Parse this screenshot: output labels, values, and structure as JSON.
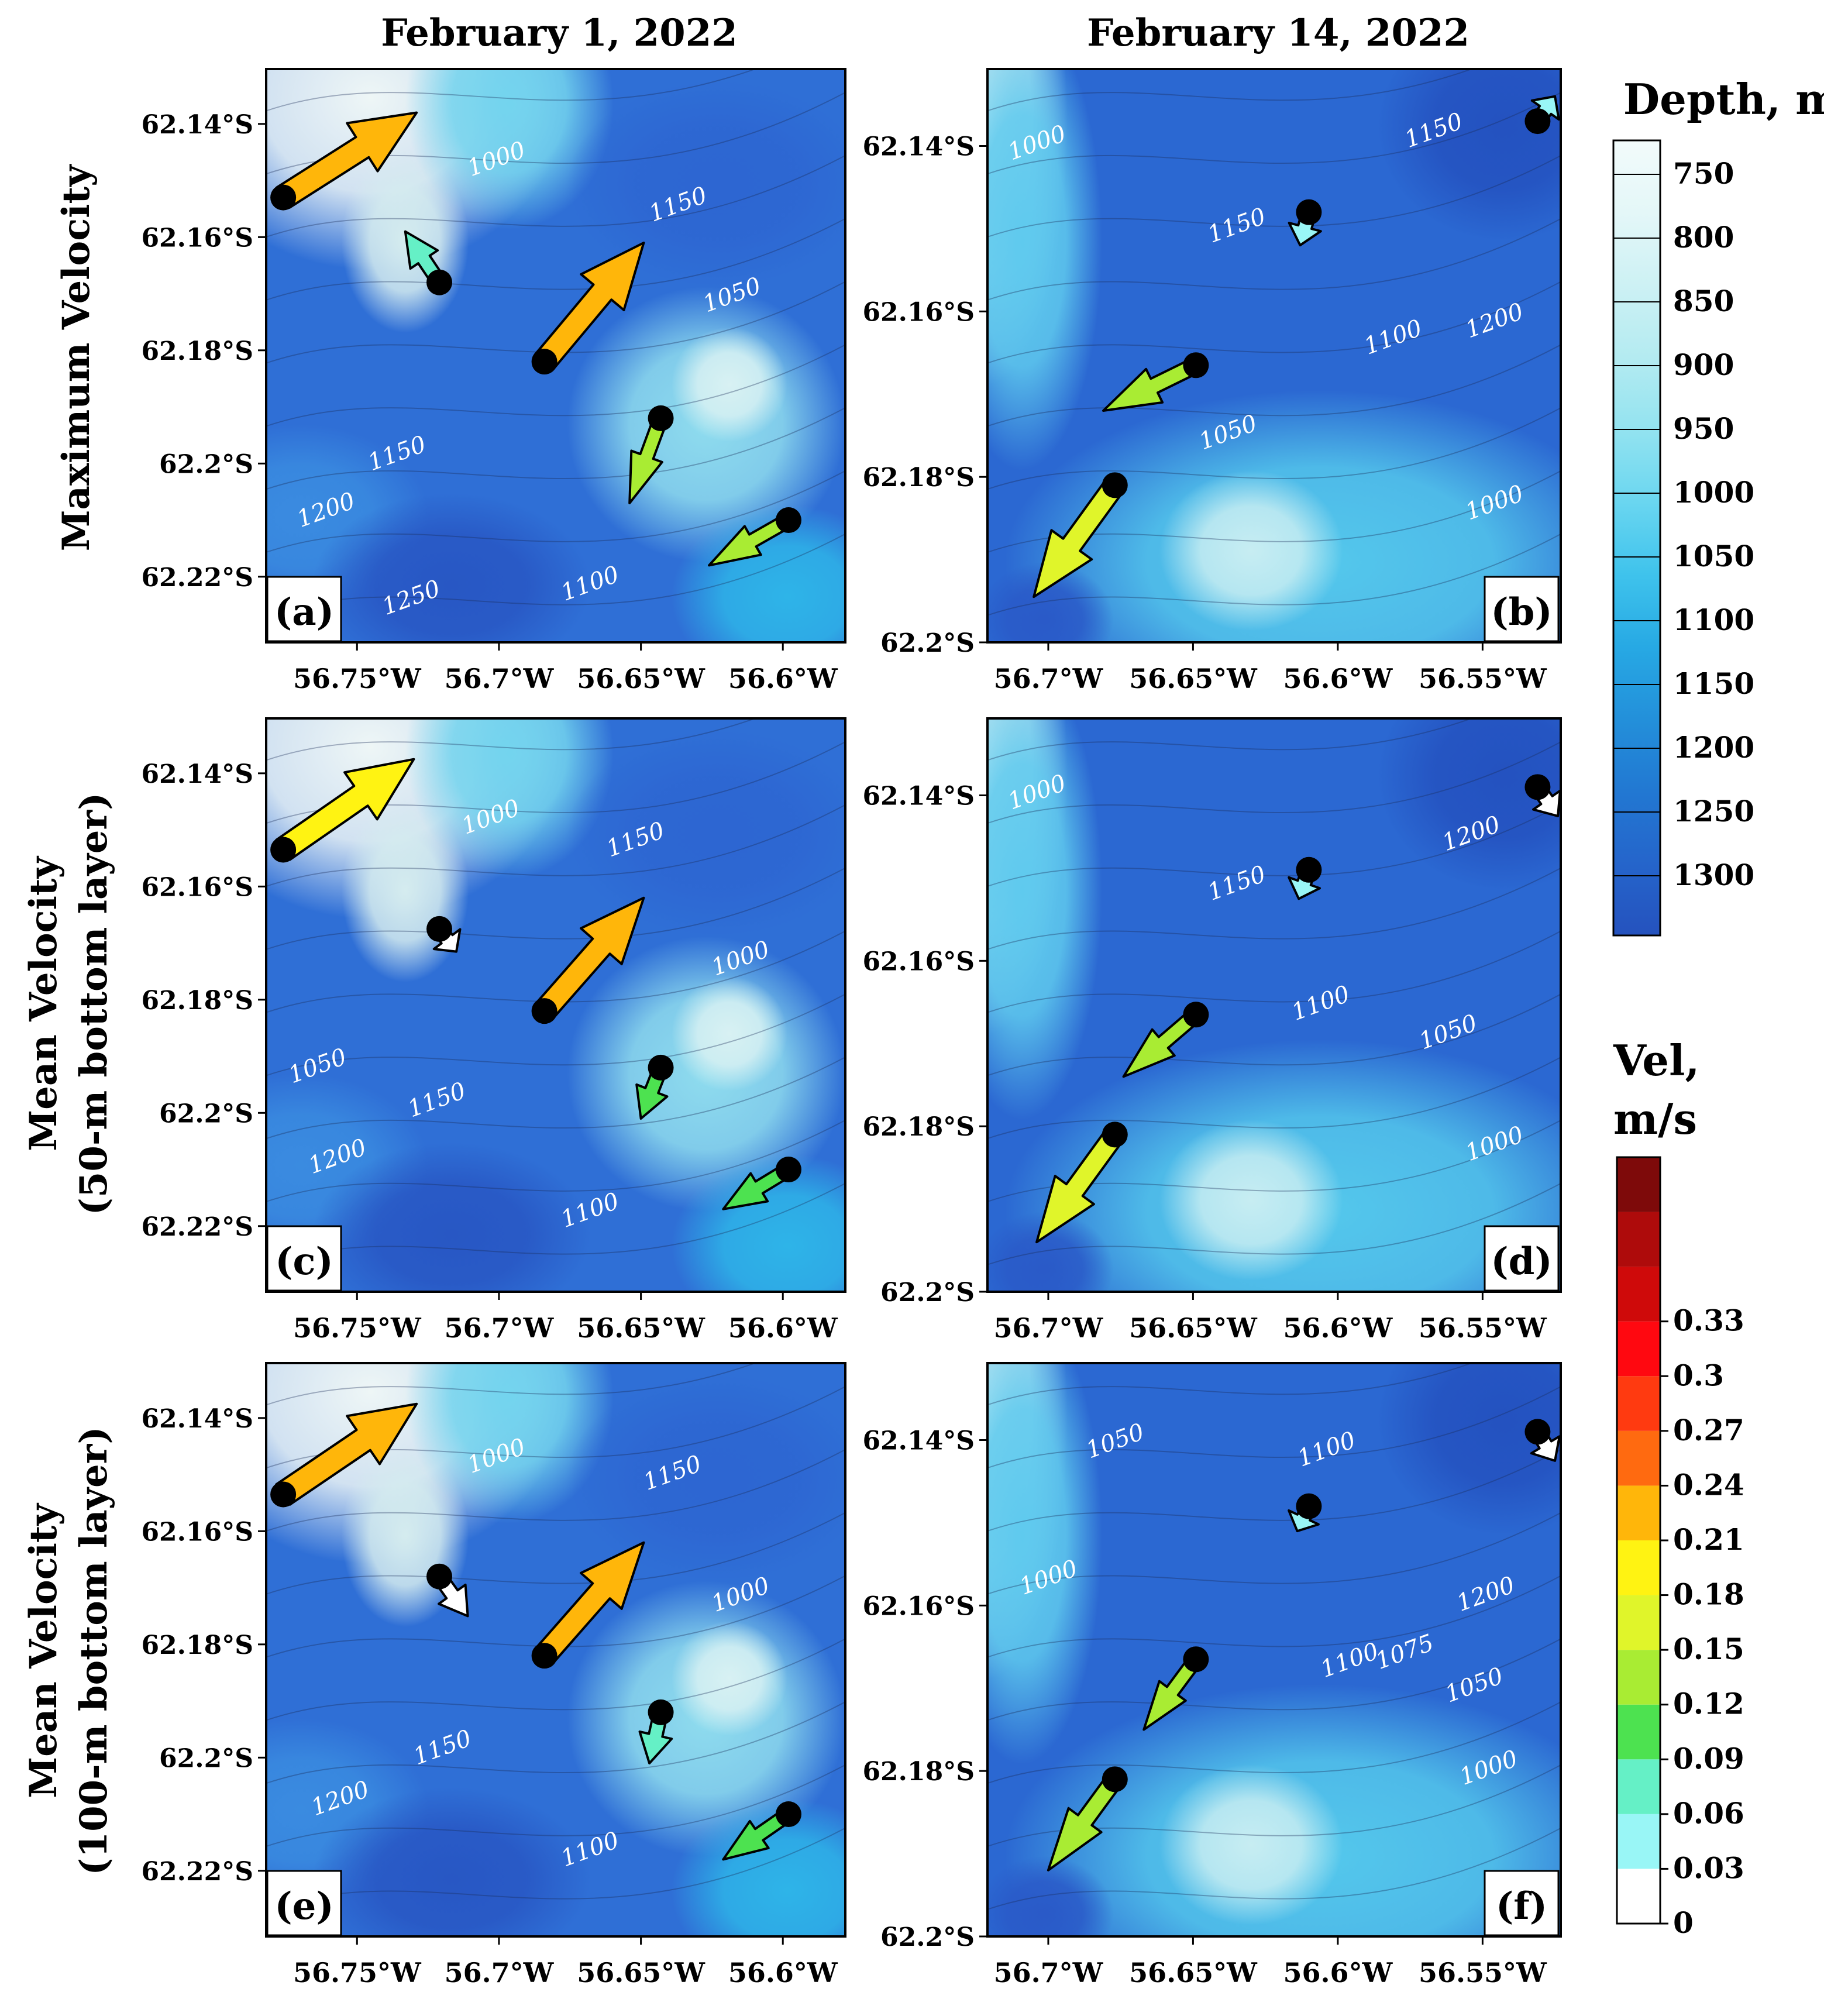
{
  "columns": [
    "February 1, 2022",
    "February 14, 2022"
  ],
  "rows": [
    {
      "label": "Maximum Velocity",
      "sublabel": ""
    },
    {
      "label": "Mean Velocity",
      "sublabel": "(50-m bottom layer)"
    },
    {
      "label": "Mean Velocity",
      "sublabel": "(100-m bottom layer)"
    }
  ],
  "axes": {
    "feb1": {
      "xticks": [
        {
          "v": -56.75,
          "t": "56.75°W"
        },
        {
          "v": -56.7,
          "t": "56.7°W"
        },
        {
          "v": -56.65,
          "t": "56.65°W"
        },
        {
          "v": -56.6,
          "t": "56.6°W"
        }
      ],
      "xlim": [
        -56.782,
        -56.578
      ],
      "yticks": [
        {
          "v": -62.14,
          "t": "62.14°S"
        },
        {
          "v": -62.16,
          "t": "62.16°S"
        },
        {
          "v": -62.18,
          "t": "62.18°S"
        },
        {
          "v": -62.2,
          "t": "62.2°S"
        },
        {
          "v": -62.22,
          "t": "62.22°S"
        }
      ],
      "ylim": [
        -62.2316,
        -62.1303
      ]
    },
    "feb14": {
      "xticks": [
        {
          "v": -56.7,
          "t": "56.7°W"
        },
        {
          "v": -56.65,
          "t": "56.65°W"
        },
        {
          "v": -56.6,
          "t": "56.6°W"
        },
        {
          "v": -56.55,
          "t": "56.55°W"
        }
      ],
      "xlim": [
        -56.721,
        -56.523
      ],
      "yticks": [
        {
          "v": -62.14,
          "t": "62.14°S"
        },
        {
          "v": -62.16,
          "t": "62.16°S"
        },
        {
          "v": -62.18,
          "t": "62.18°S"
        },
        {
          "v": -62.2,
          "t": "62.2°S"
        }
      ],
      "ylim": [
        -62.2,
        -62.1307
      ]
    }
  },
  "panels": [
    {
      "id": "a",
      "label": "(a)",
      "date": "feb1",
      "row": 0,
      "col": 0,
      "contour_labels": [
        {
          "text": "1000",
          "lon": -56.7,
          "lat": -62.1475
        },
        {
          "text": "1150",
          "lon": -56.636,
          "lat": -62.1555
        },
        {
          "text": "1050",
          "lon": -56.617,
          "lat": -62.1715
        },
        {
          "text": "1150",
          "lon": -56.735,
          "lat": -62.1995
        },
        {
          "text": "1200",
          "lon": -56.76,
          "lat": -62.2095
        },
        {
          "text": "1100",
          "lon": -56.667,
          "lat": -62.2225
        },
        {
          "text": "1250",
          "lon": -56.73,
          "lat": -62.225
        }
      ],
      "arrows": [
        {
          "lon": -56.776,
          "lat": -62.153,
          "dlon": 0.047,
          "dlat": 0.015,
          "speed": 0.22
        },
        {
          "lon": -56.721,
          "lat": -62.168,
          "dlon": -0.012,
          "dlat": 0.009,
          "speed": 0.08
        },
        {
          "lon": -56.684,
          "lat": -62.182,
          "dlon": 0.035,
          "dlat": 0.021,
          "speed": 0.22
        },
        {
          "lon": -56.643,
          "lat": -62.192,
          "dlon": -0.011,
          "dlat": -0.015,
          "speed": 0.14
        },
        {
          "lon": -56.598,
          "lat": -62.21,
          "dlon": -0.028,
          "dlat": -0.008,
          "speed": 0.14
        }
      ]
    },
    {
      "id": "b",
      "label": "(b)",
      "date": "feb14",
      "row": 0,
      "col": 1,
      "contour_labels": [
        {
          "text": "1000",
          "lon": -56.703,
          "lat": -62.1405
        },
        {
          "text": "1150",
          "lon": -56.566,
          "lat": -62.139
        },
        {
          "text": "1150",
          "lon": -56.634,
          "lat": -62.1505
        },
        {
          "text": "1200",
          "lon": -56.545,
          "lat": -62.162
        },
        {
          "text": "1100",
          "lon": -56.58,
          "lat": -62.164
        },
        {
          "text": "1050",
          "lon": -56.637,
          "lat": -62.1755
        },
        {
          "text": "1000",
          "lon": -56.545,
          "lat": -62.184
        }
      ],
      "arrows": [
        {
          "lon": -56.531,
          "lat": -62.137,
          "dlon": 0.006,
          "dlat": 0.003,
          "speed": 0.04
        },
        {
          "lon": -56.61,
          "lat": -62.148,
          "dlon": -0.003,
          "dlat": -0.004,
          "speed": 0.04
        },
        {
          "lon": -56.649,
          "lat": -62.1665,
          "dlon": -0.032,
          "dlat": -0.0055,
          "speed": 0.14
        },
        {
          "lon": -56.677,
          "lat": -62.181,
          "dlon": -0.028,
          "dlat": -0.0135,
          "speed": 0.17
        }
      ]
    },
    {
      "id": "c",
      "label": "(c)",
      "date": "feb1",
      "row": 1,
      "col": 0,
      "contour_labels": [
        {
          "text": "1000",
          "lon": -56.702,
          "lat": -62.149
        },
        {
          "text": "1150",
          "lon": -56.651,
          "lat": -62.153
        },
        {
          "text": "1000",
          "lon": -56.614,
          "lat": -62.174
        },
        {
          "text": "1050",
          "lon": -56.763,
          "lat": -62.193
        },
        {
          "text": "1150",
          "lon": -56.721,
          "lat": -62.199
        },
        {
          "text": "1200",
          "lon": -56.756,
          "lat": -62.209
        },
        {
          "text": "1100",
          "lon": -56.667,
          "lat": -62.2185
        }
      ],
      "arrows": [
        {
          "lon": -56.776,
          "lat": -62.1535,
          "dlon": 0.046,
          "dlat": 0.016,
          "speed": 0.2
        },
        {
          "lon": -56.721,
          "lat": -62.1675,
          "dlon": 0.006,
          "dlat": -0.004,
          "speed": 0.02
        },
        {
          "lon": -56.684,
          "lat": -62.182,
          "dlon": 0.035,
          "dlat": 0.02,
          "speed": 0.22
        },
        {
          "lon": -56.643,
          "lat": -62.192,
          "dlon": -0.007,
          "dlat": -0.009,
          "speed": 0.09
        },
        {
          "lon": -56.598,
          "lat": -62.21,
          "dlon": -0.023,
          "dlat": -0.007,
          "speed": 0.11
        }
      ]
    },
    {
      "id": "d",
      "label": "(d)",
      "date": "feb14",
      "row": 1,
      "col": 1,
      "contour_labels": [
        {
          "text": "1000",
          "lon": -56.703,
          "lat": -62.1405
        },
        {
          "text": "1200",
          "lon": -56.553,
          "lat": -62.1455
        },
        {
          "text": "1150",
          "lon": -56.634,
          "lat": -62.1515
        },
        {
          "text": "1100",
          "lon": -56.605,
          "lat": -62.166
        },
        {
          "text": "1050",
          "lon": -56.561,
          "lat": -62.1695
        },
        {
          "text": "1000",
          "lon": -56.545,
          "lat": -62.183
        }
      ],
      "arrows": [
        {
          "lon": -56.531,
          "lat": -62.139,
          "dlon": 0.007,
          "dlat": -0.0035,
          "speed": 0.02
        },
        {
          "lon": -56.61,
          "lat": -62.149,
          "dlon": -0.0035,
          "dlat": -0.0035,
          "speed": 0.04
        },
        {
          "lon": -56.649,
          "lat": -62.1665,
          "dlon": -0.025,
          "dlat": -0.0075,
          "speed": 0.12
        },
        {
          "lon": -56.677,
          "lat": -62.181,
          "dlon": -0.027,
          "dlat": -0.013,
          "speed": 0.16
        }
      ]
    },
    {
      "id": "e",
      "label": "(e)",
      "date": "feb1",
      "row": 2,
      "col": 0,
      "contour_labels": [
        {
          "text": "1000",
          "lon": -56.7,
          "lat": -62.148
        },
        {
          "text": "1150",
          "lon": -56.638,
          "lat": -62.151
        },
        {
          "text": "1000",
          "lon": -56.614,
          "lat": -62.1725
        },
        {
          "text": "1150",
          "lon": -56.719,
          "lat": -62.1995
        },
        {
          "text": "1200",
          "lon": -56.755,
          "lat": -62.2085
        },
        {
          "text": "1100",
          "lon": -56.667,
          "lat": -62.2175
        }
      ],
      "arrows": [
        {
          "lon": -56.776,
          "lat": -62.1535,
          "dlon": 0.047,
          "dlat": 0.016,
          "speed": 0.21
        },
        {
          "lon": -56.721,
          "lat": -62.168,
          "dlon": 0.01,
          "dlat": -0.007,
          "speed": 0.02
        },
        {
          "lon": -56.684,
          "lat": -62.182,
          "dlon": 0.035,
          "dlat": 0.02,
          "speed": 0.22
        },
        {
          "lon": -56.643,
          "lat": -62.192,
          "dlon": -0.004,
          "dlat": -0.009,
          "speed": 0.08
        },
        {
          "lon": -56.598,
          "lat": -62.21,
          "dlon": -0.023,
          "dlat": -0.008,
          "speed": 0.11
        }
      ]
    },
    {
      "id": "f",
      "label": "(f)",
      "date": "feb14",
      "row": 2,
      "col": 1,
      "contour_labels": [
        {
          "text": "1050",
          "lon": -56.676,
          "lat": -62.141
        },
        {
          "text": "1100",
          "lon": -56.603,
          "lat": -62.142
        },
        {
          "text": "1000",
          "lon": -56.699,
          "lat": -62.1575
        },
        {
          "text": "1200",
          "lon": -56.548,
          "lat": -62.1595
        },
        {
          "text": "1100",
          "lon": -56.595,
          "lat": -62.1675
        },
        {
          "text": "1075",
          "lon": -56.576,
          "lat": -62.1665
        },
        {
          "text": "1050",
          "lon": -56.552,
          "lat": -62.1705
        },
        {
          "text": "1000",
          "lon": -56.547,
          "lat": -62.1805
        }
      ],
      "arrows": [
        {
          "lon": -56.531,
          "lat": -62.139,
          "dlon": 0.006,
          "dlat": -0.0035,
          "speed": 0.02
        },
        {
          "lon": -56.61,
          "lat": -62.148,
          "dlon": -0.004,
          "dlat": -0.003,
          "speed": 0.04
        },
        {
          "lon": -56.649,
          "lat": -62.1665,
          "dlon": -0.018,
          "dlat": -0.0085,
          "speed": 0.12
        },
        {
          "lon": -56.677,
          "lat": -62.181,
          "dlon": -0.023,
          "dlat": -0.011,
          "speed": 0.14
        }
      ]
    }
  ],
  "depth_legend": {
    "title": "Depth, m",
    "labels": [
      "750",
      "800",
      "850",
      "900",
      "950",
      "1000",
      "1050",
      "1100",
      "1150",
      "1200",
      "1250",
      "1300"
    ],
    "colors": [
      "#f2fbfb",
      "#e4f7f8",
      "#cdf1f4",
      "#b4ebf1",
      "#93e3f0",
      "#6ad6f0",
      "#3fc3ec",
      "#27a9e4",
      "#2390da",
      "#2278d2",
      "#2565cb",
      "#2552be"
    ]
  },
  "velocity_legend": {
    "title_line1": "Vel,",
    "title_line2": "m/s",
    "labels": [
      "0",
      "0.03",
      "0.06",
      "0.09",
      "0.12",
      "0.15",
      "0.18",
      "0.21",
      "0.24",
      "0.27",
      "0.3",
      "0.33"
    ],
    "colors": [
      "#ffffff",
      "#99f6f6",
      "#65f0c6",
      "#4de250",
      "#a9ec33",
      "#e0f52a",
      "#fff312",
      "#ffb60a",
      "#ff6a10",
      "#ff3a10",
      "#ff0810",
      "#cf0a0a",
      "#ae0b0b",
      "#7e0a0a"
    ]
  }
}
